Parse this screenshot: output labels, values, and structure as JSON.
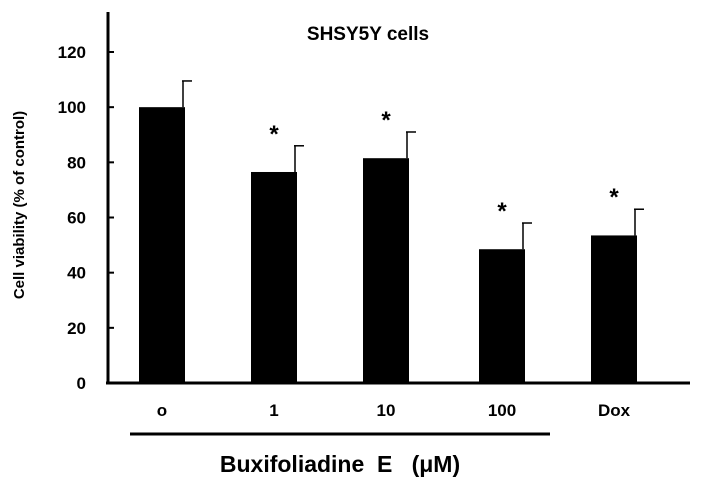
{
  "chart_data": {
    "type": "bar",
    "title": "SHSY5Y cells",
    "ylabel": "Cell viability (% of control)",
    "xlabel": "Buxifoliadine  E   (μM)",
    "categories": [
      "o",
      "1",
      "10",
      "100",
      "Dox"
    ],
    "values": [
      100,
      76.5,
      81.5,
      48.5,
      53.5
    ],
    "errors": [
      9.5,
      9.5,
      9.5,
      9.5,
      9.5
    ],
    "significance": [
      "",
      "*",
      "*",
      "*",
      "*"
    ],
    "ylim": [
      0,
      120
    ],
    "yticks": [
      "0",
      "20",
      "40",
      "60",
      "80",
      "100",
      "120"
    ],
    "bar_color": "#000000",
    "grid": false,
    "legend": "none",
    "bracket_under_categories": [
      "o",
      "1",
      "10",
      "100"
    ]
  }
}
